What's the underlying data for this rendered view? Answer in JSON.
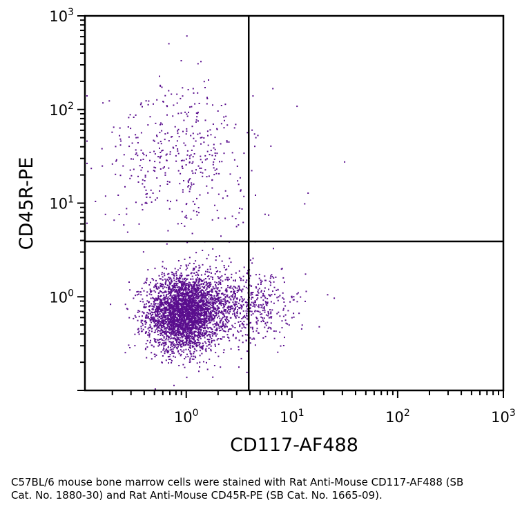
{
  "chart_data": {
    "type": "scatter",
    "title": "",
    "xlabel": "CD117-AF488",
    "ylabel": "CD45R-PE",
    "x_scale": "log",
    "y_scale": "log",
    "xlim": [
      0.11,
      1000
    ],
    "ylim": [
      0.1,
      1000
    ],
    "x_ticks": [
      {
        "value": 1,
        "base": "10",
        "exp": "0"
      },
      {
        "value": 10,
        "base": "10",
        "exp": "1"
      },
      {
        "value": 100,
        "base": "10",
        "exp": "2"
      },
      {
        "value": 1000,
        "base": "10",
        "exp": "3"
      }
    ],
    "y_ticks": [
      {
        "value": 1,
        "base": "10",
        "exp": "0"
      },
      {
        "value": 10,
        "base": "10",
        "exp": "1"
      },
      {
        "value": 100,
        "base": "10",
        "exp": "2"
      },
      {
        "value": 1000,
        "base": "10",
        "exp": "3"
      }
    ],
    "gates": {
      "x": 3.9,
      "y": 3.9
    },
    "point_color": "#5a0e8e",
    "populations": [
      {
        "description_id": "main-cluster",
        "x_center": 0.92,
        "y_center": 0.68,
        "x_spread_log": 0.17,
        "y_spread_log": 0.2,
        "count": 3200
      },
      {
        "description_id": "cluster-tail-right",
        "x_center": 2.2,
        "y_center": 0.8,
        "x_spread_log": 0.22,
        "y_spread_log": 0.2,
        "count": 700
      },
      {
        "description_id": "cluster-far-right",
        "x_center": 5.5,
        "y_center": 0.85,
        "x_spread_log": 0.2,
        "y_spread_log": 0.18,
        "count": 170
      },
      {
        "description_id": "upper-left",
        "x_center": 0.75,
        "y_center": 35,
        "x_spread_log": 0.33,
        "y_spread_log": 0.38,
        "count": 360
      },
      {
        "description_id": "upper-scatter",
        "x_center": 2.2,
        "y_center": 20,
        "x_spread_log": 0.25,
        "y_spread_log": 0.4,
        "count": 70
      }
    ],
    "outliers": [
      {
        "x": 1.0,
        "y": 620
      },
      {
        "x": 31,
        "y": 28
      },
      {
        "x": 14,
        "y": 13
      },
      {
        "x": 13,
        "y": 10
      },
      {
        "x": 11,
        "y": 110
      },
      {
        "x": 0.55,
        "y": 230
      },
      {
        "x": 1.6,
        "y": 210
      },
      {
        "x": 6.5,
        "y": 170
      }
    ]
  },
  "caption": "C57BL/6 mouse bone marrow cells were stained with Rat Anti-Mouse CD117-AF488 (SB Cat. No. 1880-30) and Rat Anti-Mouse CD45R-PE (SB Cat. No. 1665-09)."
}
